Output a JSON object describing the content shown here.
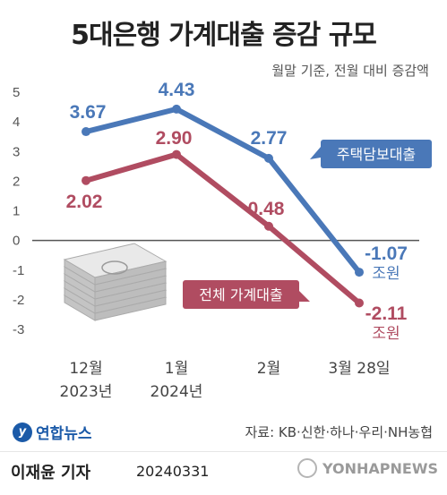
{
  "header": {
    "title": "5대은행 가계대출 증감 규모",
    "subtitle": "월말 기준, 전월 대비 증감액"
  },
  "chart_data": {
    "type": "line",
    "categories": [
      "12월\n2023년",
      "1월\n2024년",
      "2월",
      "3월 28일"
    ],
    "ylim": [
      -3,
      5
    ],
    "yticks": [
      5,
      4,
      3,
      2,
      1,
      0,
      -1,
      -2,
      -3
    ],
    "unit": "조원",
    "series": [
      {
        "name": "주택담보대출",
        "values": [
          3.67,
          4.43,
          2.77,
          -1.07
        ],
        "labels": [
          "3.67",
          "4.43",
          "2.77",
          "-1.07"
        ],
        "color": "#4a78b8"
      },
      {
        "name": "전체 가계대출",
        "values": [
          2.02,
          2.9,
          0.48,
          -2.11
        ],
        "labels": [
          "2.02",
          "2.90",
          "0.48",
          "-2.11"
        ],
        "color": "#b04c61"
      }
    ]
  },
  "footer": {
    "logo_text": "연합뉴스",
    "source": "자료: KB·신한·하나·우리·NH농협",
    "author": "이재윤 기자",
    "date": "20240331",
    "watermark": "YONHAPNEWS"
  },
  "icons": {
    "illustration": "money-stack-icon",
    "logo": "yonhap-logo-icon",
    "watermark": "yonhap-watermark-icon"
  }
}
